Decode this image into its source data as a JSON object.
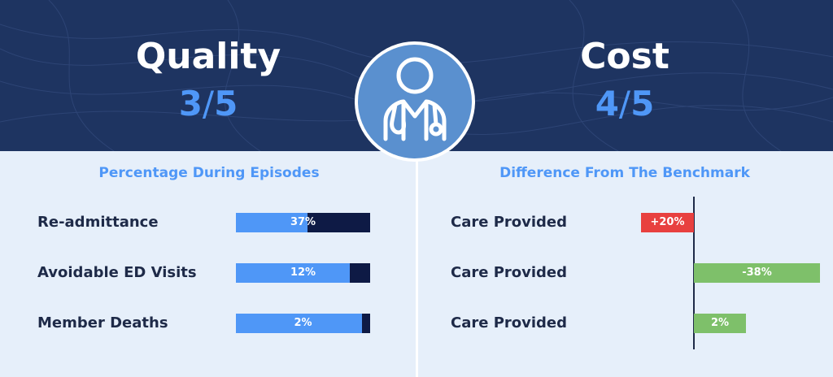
{
  "quality": {
    "title": "Quality",
    "score": "3",
    "slash": "/",
    "out_of": "5"
  },
  "cost": {
    "title": "Cost",
    "score": "4",
    "slash": "/",
    "out_of": "5"
  },
  "colors": {
    "header": "#1e3461",
    "accent": "#4f97f7",
    "bar_track": "#0e1a45",
    "positive": "#e8403f",
    "negative": "#7ec06a"
  },
  "icon": "doctor-with-stethoscope-icon",
  "chart_data": [
    {
      "type": "bar",
      "title": "Percentage During Episodes",
      "categories": [
        "Re-admittance",
        "Avoidable ED Visits",
        "Member Deaths"
      ],
      "values": [
        37,
        12,
        2
      ],
      "labels": [
        "37%",
        "12%",
        "2%"
      ],
      "ylim": [
        0,
        100
      ]
    },
    {
      "type": "bar",
      "title": "Difference From The Benchmark",
      "categories": [
        "Care Provided",
        "Care Provided",
        "Care Provided"
      ],
      "values": [
        20,
        -38,
        2
      ],
      "labels": [
        "+20%",
        "-38%",
        "2%"
      ]
    }
  ]
}
